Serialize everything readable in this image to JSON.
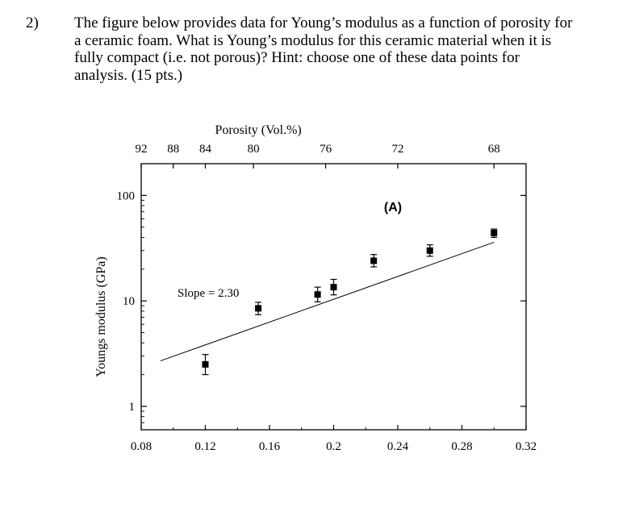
{
  "question": {
    "number": "2)",
    "lines": [
      "The figure below provides data for Young’s modulus as a function of porosity for",
      "a ceramic foam.  What is Young’s modulus for this ceramic material when it is",
      "fully compact (i.e. not porous)?  Hint: choose one of these data points for",
      "analysis.  (15 pts.)"
    ]
  },
  "chart_data": {
    "type": "scatter",
    "panel_label": "(A)",
    "annotation": "Slope = 2.30",
    "xlabel": "",
    "ylabel": "Youngs modulus (GPa)",
    "x2label": "Porosity (Vol.%)",
    "yscale": "log",
    "xlim": [
      0.08,
      0.32
    ],
    "ylim": [
      0.6,
      200
    ],
    "x_ticks": [
      0.08,
      0.12,
      0.16,
      0.2,
      0.24,
      0.28,
      0.32
    ],
    "x_tick_labels": [
      "0.08",
      "0.12",
      "0.16",
      "0.2",
      "0.24",
      "0.28",
      "0.32"
    ],
    "y_ticks": [
      1,
      10,
      100
    ],
    "y_tick_labels": [
      "1",
      "10",
      "100"
    ],
    "top_ticks": [
      92,
      88,
      84,
      80,
      76,
      72,
      68
    ],
    "top_tick_labels": [
      "92",
      "88",
      "84",
      "80",
      "76",
      "72",
      "68"
    ],
    "top_tick_x": [
      0.08,
      0.1,
      0.12,
      0.15,
      0.195,
      0.24,
      0.3
    ],
    "points": [
      {
        "x": 0.12,
        "y": 2.5,
        "ylo": 2.0,
        "yhi": 3.1
      },
      {
        "x": 0.153,
        "y": 8.5,
        "ylo": 7.4,
        "yhi": 9.7
      },
      {
        "x": 0.19,
        "y": 11.5,
        "ylo": 9.8,
        "yhi": 13.5
      },
      {
        "x": 0.2,
        "y": 13.5,
        "ylo": 11.4,
        "yhi": 16.0
      },
      {
        "x": 0.225,
        "y": 24,
        "ylo": 21,
        "yhi": 27.5
      },
      {
        "x": 0.26,
        "y": 30,
        "ylo": 26.5,
        "yhi": 34
      },
      {
        "x": 0.3,
        "y": 44,
        "ylo": 40,
        "yhi": 48
      }
    ],
    "fit_line": {
      "x": [
        0.08,
        0.3
      ],
      "y": [
        2.7,
        36
      ]
    }
  }
}
